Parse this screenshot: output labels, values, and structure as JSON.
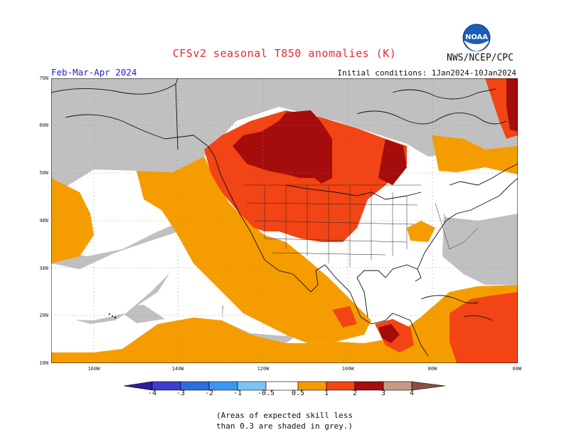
{
  "header": {
    "title": "CFSv2 seasonal T850 anomalies (K)",
    "agency": "NWS/NCEP/CPC",
    "season": "Feb-Mar-Apr 2024",
    "initial_conditions": "Initial conditions: 1Jan2024-10Jan2024"
  },
  "logo": {
    "text": "NOAA"
  },
  "map": {
    "lat_labels": [
      "70N",
      "60N",
      "50N",
      "40N",
      "30N",
      "20N",
      "10N"
    ],
    "lon_labels": [
      "160W",
      "140W",
      "120W",
      "100W",
      "80W",
      "60W"
    ],
    "colors": {
      "grey": "#c0c0c0",
      "white": "#ffffff",
      "orange": "#f59d00",
      "orange_red": "#f24414",
      "red": "#d8281a",
      "dark_red": "#a50c0c"
    }
  },
  "colorbar": {
    "labels": [
      "-4",
      "-3",
      "-2",
      "-1",
      "-0.5",
      "0.5",
      "1",
      "2",
      "3",
      "4"
    ],
    "colors": [
      "#2a1ea0",
      "#3c3cd0",
      "#2e6de0",
      "#3a98f0",
      "#7cc4f8",
      "#ffffff",
      "#f59d00",
      "#f24414",
      "#a50c0c",
      "#c8998a",
      "#8a5040"
    ]
  },
  "footnote": {
    "line1": "(Areas of expected skill less",
    "line2": "than 0.3 are shaded in grey.)"
  }
}
